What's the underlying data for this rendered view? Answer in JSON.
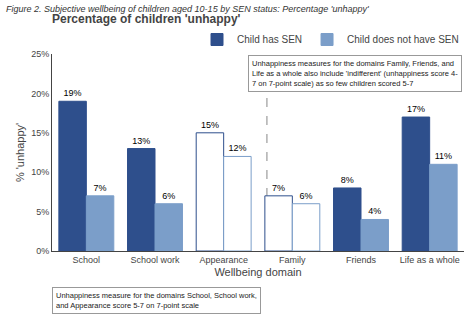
{
  "chart_data": {
    "type": "bar",
    "title": "Percentage of children 'unhappy'",
    "subtitle": "Figure 2. Subjective wellbeing of children aged 10-15 by SEN status: Percentage 'unhappy'",
    "xlabel": "Wellbeing domain",
    "ylabel": "% 'unhappy'",
    "categories": [
      "School",
      "School work",
      "Appearance",
      "Family",
      "Friends",
      "Life as a whole"
    ],
    "series": [
      {
        "name": "Child has SEN",
        "color": "#2E4F8C",
        "colors": [
          "#2E4F8C",
          "#2E4F8C",
          "white",
          "white",
          "#2E4F8C",
          "#2E4F8C"
        ],
        "values": [
          19,
          13,
          15,
          7,
          8,
          17
        ],
        "value_labels": [
          "19%",
          "13%",
          "15%",
          "7%",
          "8%",
          "17%"
        ]
      },
      {
        "name": "Child does not have SEN",
        "color": "#7B9EC9",
        "colors": [
          "#7B9EC9",
          "#7B9EC9",
          "white",
          "white",
          "#7B9EC9",
          "#7B9EC9"
        ],
        "values": [
          7,
          6,
          12,
          6,
          4,
          11
        ],
        "value_labels": [
          "7%",
          "6%",
          "12%",
          "6%",
          "4%",
          "11%"
        ]
      }
    ],
    "ylim": [
      0,
      25
    ],
    "yticks": [
      {
        "value": 0,
        "label": "0%"
      },
      {
        "value": 5,
        "label": "5%"
      },
      {
        "value": 10,
        "label": "10%"
      },
      {
        "value": 15,
        "label": "15%"
      },
      {
        "value": 20,
        "label": "20%"
      },
      {
        "value": 25,
        "label": "25%"
      }
    ],
    "grid": false,
    "legend": "upper right",
    "data_labels": true,
    "annotations": [
      "Unhappiness measure for the domains School, School work,\nand Appearance score 5-7 on 7-point scale",
      "Unhappiness measures for the domains Family, Friends, and\nLife as a whole also include 'indifferent' (unhappiness score 4-\n7 on 7-point scale) as so few children scored 5-7"
    ]
  }
}
